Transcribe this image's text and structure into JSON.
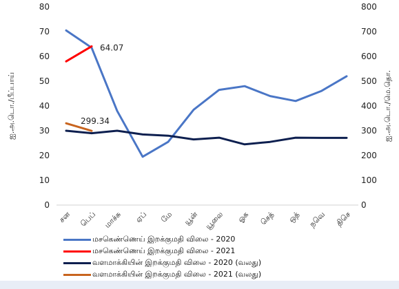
{
  "chart_data": {
    "type": "line",
    "categories": [
      "சன",
      "பெப்",
      "மாச்சு",
      "ஏப்",
      "மே",
      "யூன்",
      "யூலை",
      "ஓக",
      "செத்",
      "ஒத்",
      "நவெ",
      "திசெ"
    ],
    "y_left": {
      "label": "ஐ.அ.டொ./பீப்பாய்",
      "ylim": [
        0,
        80
      ],
      "ticks": [
        "0",
        "10",
        "20",
        "30",
        "40",
        "50",
        "60",
        "70",
        "80"
      ]
    },
    "y_right": {
      "label": "ஐ.அ.டொ./மெ.தொ.",
      "ylim": [
        0,
        800
      ],
      "ticks": [
        "0",
        "100",
        "200",
        "300",
        "400",
        "500",
        "600",
        "700",
        "800"
      ]
    },
    "series": [
      {
        "name": "மசகெண்ணெய் இறக்குமதி விலை - 2020",
        "axis": "left",
        "color": "#4a76c6",
        "values": [
          70.5,
          63.5,
          38,
          19.5,
          25.5,
          38.5,
          46.5,
          48,
          44,
          42,
          46,
          52
        ]
      },
      {
        "name": "மசகெண்ணெய் இறக்குமதி விலை - 2021",
        "axis": "left",
        "color": "#ff0000",
        "values": [
          58,
          64.07,
          null,
          null,
          null,
          null,
          null,
          null,
          null,
          null,
          null,
          null
        ]
      },
      {
        "name": "வளமாக்கியின் இறக்குமதி விலை - 2020 (வலது)",
        "axis": "right",
        "color": "#0d1f4f",
        "values": [
          300,
          290,
          300,
          285,
          280,
          265,
          272,
          245,
          255,
          272,
          271,
          271
        ]
      },
      {
        "name": "வளமாக்கியின் இறக்குமதி விலை - 2021 (வலது)",
        "axis": "right",
        "color": "#c8641e",
        "values": [
          330,
          299.34,
          null,
          null,
          null,
          null,
          null,
          null,
          null,
          null,
          null,
          null
        ]
      }
    ],
    "annotations": [
      {
        "text": "64.07",
        "series": 1,
        "index": 1
      },
      {
        "text": "299.34",
        "series": 3,
        "index": 1
      }
    ],
    "grid": false,
    "legend_position": "bottom"
  }
}
